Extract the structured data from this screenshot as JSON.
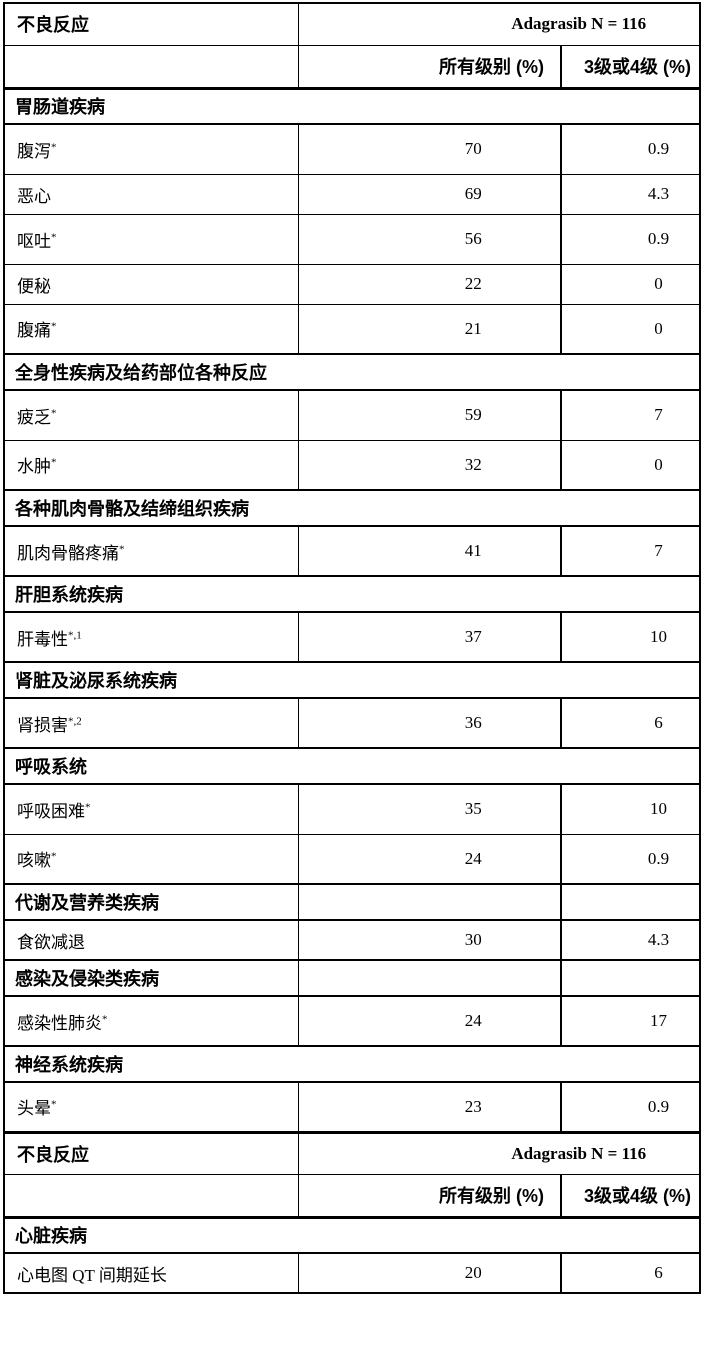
{
  "rows": [
    {
      "type": "header1",
      "label": "不良反应",
      "group_label": "Adagrasib N = 116"
    },
    {
      "type": "header2",
      "col2": "所有级别 (%)",
      "col3": "3级或4级 (%)"
    },
    {
      "type": "category",
      "label": "胃肠道疾病",
      "span": true
    },
    {
      "type": "data",
      "term": "腹泻",
      "sup": "*",
      "all_grades": "70",
      "grade_3_4": "0.9"
    },
    {
      "type": "data",
      "term": "恶心",
      "sup": "",
      "all_grades": "69",
      "grade_3_4": "4.3"
    },
    {
      "type": "data",
      "term": "呕吐",
      "sup": "*",
      "all_grades": "56",
      "grade_3_4": "0.9"
    },
    {
      "type": "data",
      "term": "便秘",
      "sup": "",
      "all_grades": "22",
      "grade_3_4": "0"
    },
    {
      "type": "data",
      "term": "腹痛",
      "sup": "*",
      "all_grades": "21",
      "grade_3_4": "0"
    },
    {
      "type": "category",
      "label": "全身性疾病及给药部位各种反应",
      "span": true
    },
    {
      "type": "data",
      "term": "疲乏",
      "sup": "*",
      "all_grades": "59",
      "grade_3_4": "7"
    },
    {
      "type": "data",
      "term": "水肿",
      "sup": "*",
      "all_grades": "32",
      "grade_3_4": "0"
    },
    {
      "type": "category",
      "label": "各种肌肉骨骼及结缔组织疾病",
      "span": true
    },
    {
      "type": "data",
      "term": "肌肉骨骼疼痛",
      "sup": "*",
      "all_grades": "41",
      "grade_3_4": "7"
    },
    {
      "type": "category",
      "label": "肝胆系统疾病",
      "span": true
    },
    {
      "type": "data",
      "term": "肝毒性",
      "sup": "*,1",
      "all_grades": "37",
      "grade_3_4": "10"
    },
    {
      "type": "category",
      "label": "肾脏及泌尿系统疾病",
      "span": true
    },
    {
      "type": "data",
      "term": "肾损害",
      "sup": "*,2",
      "all_grades": "36",
      "grade_3_4": "6"
    },
    {
      "type": "category",
      "label": "呼吸系统",
      "span": true
    },
    {
      "type": "data",
      "term": "呼吸困难",
      "sup": "*",
      "all_grades": "35",
      "grade_3_4": "10"
    },
    {
      "type": "data",
      "term": "咳嗽",
      "sup": "*",
      "all_grades": "24",
      "grade_3_4": "0.9"
    },
    {
      "type": "category",
      "label": "代谢及营养类疾病",
      "span": false
    },
    {
      "type": "data",
      "term": "食欲减退",
      "sup": "",
      "all_grades": "30",
      "grade_3_4": "4.3"
    },
    {
      "type": "category",
      "label": "感染及侵染类疾病",
      "span": false
    },
    {
      "type": "data",
      "term": "感染性肺炎",
      "sup": "*",
      "all_grades": "24",
      "grade_3_4": "17"
    },
    {
      "type": "category",
      "label": "神经系统疾病",
      "span": true
    },
    {
      "type": "data",
      "term": "头晕",
      "sup": "*",
      "all_grades": "23",
      "grade_3_4": "0.9"
    },
    {
      "type": "header1",
      "label": "不良反应",
      "group_label": "Adagrasib N = 116",
      "restart": true
    },
    {
      "type": "header2",
      "col2": "所有级别 (%)",
      "col3": "3级或4级 (%)"
    },
    {
      "type": "category",
      "label": "心脏疾病",
      "span": true
    },
    {
      "type": "data",
      "term": "心电图 QT 间期延长",
      "sup": "",
      "all_grades": "20",
      "grade_3_4": "6"
    }
  ]
}
